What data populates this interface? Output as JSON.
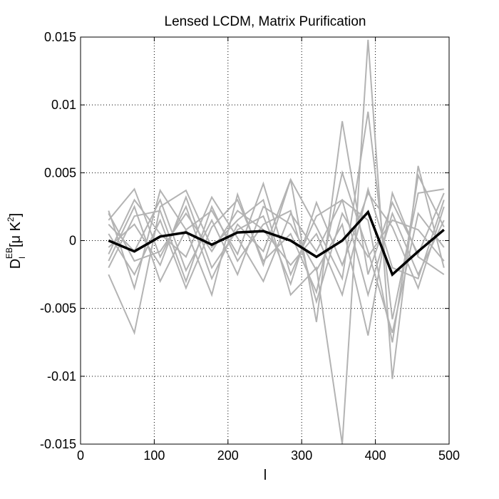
{
  "chart_data": {
    "type": "line",
    "title": "Lensed LCDM, Matrix Purification",
    "xlabel": "l",
    "ylabel": {
      "base": "D",
      "sub": "l",
      "sup": "EB",
      "units_prefix": "[μ K",
      "units_sup": "2",
      "units_suffix": "]"
    },
    "xlim": [
      0,
      500
    ],
    "ylim": [
      -0.015,
      0.015
    ],
    "x_ticks": [
      0,
      100,
      200,
      300,
      400,
      500
    ],
    "x_tick_labels": [
      "0",
      "100",
      "200",
      "300",
      "400",
      "500"
    ],
    "y_ticks": [
      -0.015,
      -0.01,
      -0.005,
      0,
      0.005,
      0.01,
      0.015
    ],
    "y_tick_labels": [
      "-0.015",
      "-0.01",
      "-0.005",
      "0",
      "0.005",
      "0.01",
      "0.015"
    ],
    "grid": true,
    "x": [
      38,
      73,
      108,
      143,
      178,
      213,
      248,
      285,
      320,
      355,
      390,
      423,
      458,
      493
    ],
    "colors": {
      "realization": "#b3b3b3",
      "mean": "#000000"
    },
    "series": [
      {
        "role": "realization",
        "values": [
          0.0022,
          -0.0035,
          0.0037,
          0.0008,
          -0.004,
          0.0034,
          -0.0018,
          0.0045,
          -0.006,
          0.0088,
          -0.0025,
          0.0028,
          -0.001,
          0.0035
        ]
      },
      {
        "role": "realization",
        "values": [
          -0.0025,
          -0.0068,
          0.0025,
          0.0037,
          -0.0005,
          0.0015,
          0.003,
          -0.004,
          -0.002,
          -0.015,
          0.0148,
          -0.0102,
          0.0055,
          -0.002
        ]
      },
      {
        "role": "realization",
        "values": [
          0.0015,
          0.0038,
          -0.0012,
          0.0025,
          -0.0028,
          0.0012,
          -0.0008,
          0.0045,
          0.001,
          -0.0028,
          0.0095,
          -0.0058,
          0.0035,
          0.0038
        ]
      },
      {
        "role": "realization",
        "values": [
          -0.0015,
          0.0025,
          -0.003,
          0.0008,
          0.0022,
          -0.001,
          0.0042,
          -0.0025,
          0.0018,
          0.003,
          -0.004,
          0.002,
          -0.0025,
          0.0015
        ]
      },
      {
        "role": "realization",
        "values": [
          0.0005,
          -0.0025,
          0.0015,
          -0.0035,
          0.001,
          0.003,
          -0.0015,
          0.0005,
          -0.0038,
          0.005,
          -0.0008,
          -0.0068,
          0.002,
          -0.0005
        ]
      },
      {
        "role": "realization",
        "values": [
          -0.0005,
          0.0012,
          -0.0018,
          0.0032,
          -0.002,
          0.0008,
          0.0018,
          -0.0032,
          0.0028,
          -0.0018,
          0.0035,
          0.001,
          -0.0035,
          0.0025
        ]
      },
      {
        "role": "realization",
        "values": [
          0.0012,
          -0.0008,
          0.003,
          -0.0022,
          0.0015,
          -0.0025,
          0.0025,
          0.0012,
          -0.0022,
          0.0012,
          -0.007,
          0.0035,
          -0.0012,
          -0.0025
        ]
      },
      {
        "role": "realization",
        "values": [
          -0.001,
          0.003,
          0.0005,
          -0.0012,
          0.0032,
          0.0002,
          -0.003,
          0.002,
          -0.0008,
          0.003,
          0.0015,
          -0.0075,
          0.0048,
          0.001
        ]
      },
      {
        "role": "realization",
        "values": [
          0.002,
          -0.0015,
          -0.0008,
          0.002,
          -0.0008,
          0.0022,
          0.0008,
          -0.0018,
          0.0005,
          -0.004,
          0.0038,
          -0.002,
          -0.0028,
          0.003
        ]
      },
      {
        "role": "realization",
        "values": [
          -0.002,
          0.0018,
          0.0022,
          -0.003,
          0.0025,
          -0.0015,
          0.0012,
          0.0022,
          -0.0045,
          0.002,
          -0.0012,
          0.0015,
          0.0008,
          -0.0015
        ]
      },
      {
        "role": "mean",
        "values": [
          0.0,
          -0.0008,
          0.0003,
          0.0006,
          -0.0003,
          0.0006,
          0.0007,
          0.0,
          -0.0012,
          0.0,
          0.0021,
          -0.0025,
          -0.0008,
          0.0008
        ]
      }
    ]
  }
}
